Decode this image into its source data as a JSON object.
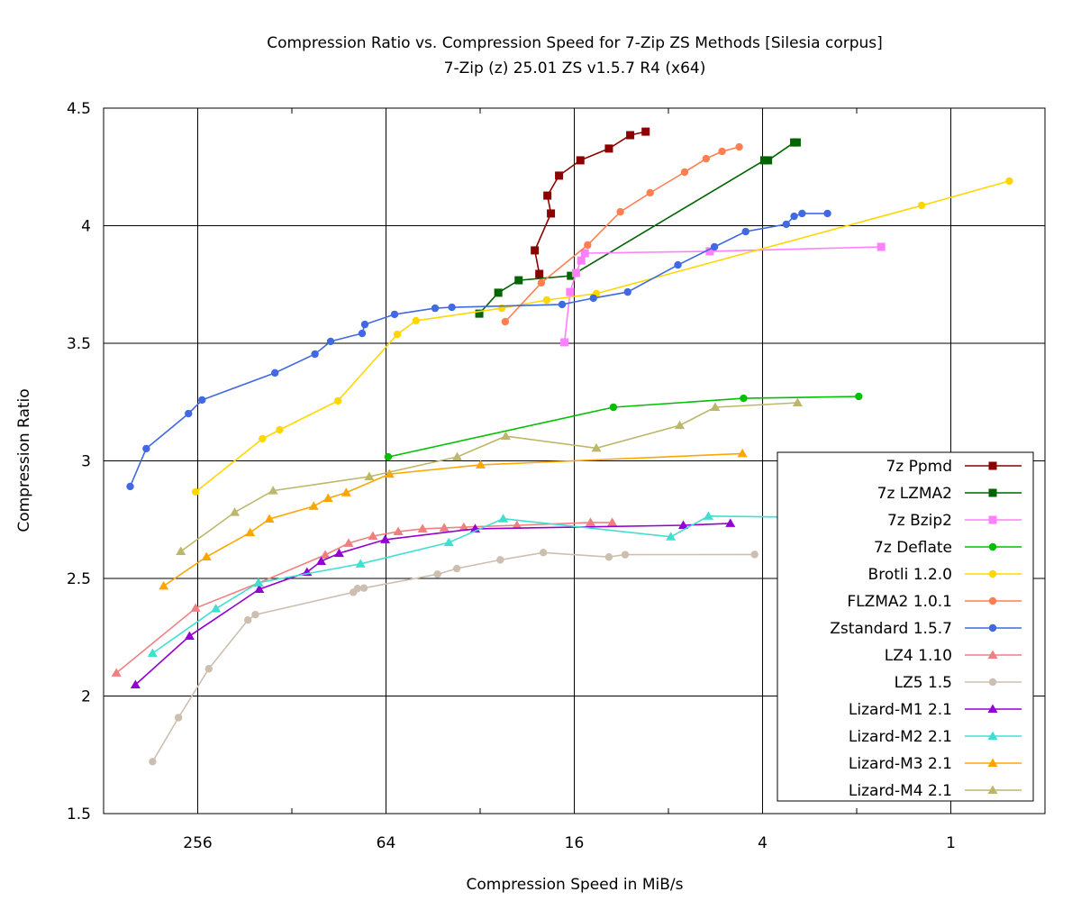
{
  "chart_data": {
    "type": "line",
    "title": "Compression Ratio vs. Compression Speed for 7-Zip ZS Methods [Silesia corpus]",
    "subtitle": "7-Zip (z) 25.01 ZS v1.5.7 R4 (x64)",
    "xlabel": "Compression Speed in MiB/s",
    "ylabel": "Compression Ratio",
    "x_scale": "log2",
    "x_reversed": true,
    "xlim": [
      512,
      0.5
    ],
    "ylim": [
      1.5,
      4.5
    ],
    "x_ticks": [
      256,
      64,
      16,
      4,
      1
    ],
    "x_tick_labels": [
      "256",
      "64",
      "16",
      "4",
      "1"
    ],
    "x_minor_ticks": [
      128,
      32,
      8,
      2
    ],
    "y_ticks": [
      1.5,
      2,
      2.5,
      3,
      3.5,
      4,
      4.5
    ],
    "y_tick_labels": [
      "1.5",
      "2",
      "2.5",
      "3",
      "3.5",
      "4",
      "4.5"
    ],
    "grid": true,
    "legend_position": "bottom-right",
    "series": [
      {
        "name": "7z Ppmd",
        "color": "#8b0000",
        "marker": "square",
        "points": [
          [
            20.7,
            3.795
          ],
          [
            21.4,
            3.895
          ],
          [
            19.0,
            4.052
          ],
          [
            19.5,
            4.128
          ],
          [
            17.9,
            4.213
          ],
          [
            15.3,
            4.278
          ],
          [
            12.4,
            4.328
          ],
          [
            10.6,
            4.385
          ],
          [
            9.46,
            4.4
          ]
        ]
      },
      {
        "name": "7z LZMA2",
        "color": "#006400",
        "marker": "square",
        "points": [
          [
            32.2,
            3.626
          ],
          [
            28.0,
            3.715
          ],
          [
            24.1,
            3.768
          ],
          [
            16.4,
            3.787
          ],
          [
            3.95,
            4.278
          ],
          [
            3.84,
            4.278
          ],
          [
            3.17,
            4.354
          ],
          [
            3.11,
            4.354
          ]
        ]
      },
      {
        "name": "7z Bzip2",
        "color": "#ff80ff",
        "marker": "square",
        "points": [
          [
            17.2,
            3.504
          ],
          [
            16.5,
            3.718
          ],
          [
            15.8,
            3.799
          ],
          [
            15.2,
            3.852
          ],
          [
            14.8,
            3.883
          ],
          [
            5.9,
            3.891
          ],
          [
            1.67,
            3.91
          ]
        ]
      },
      {
        "name": "7z Deflate",
        "color": "#00c000",
        "marker": "circle",
        "points": [
          [
            63.0,
            3.017
          ],
          [
            12.0,
            3.228
          ],
          [
            4.6,
            3.266
          ],
          [
            1.97,
            3.274
          ]
        ]
      },
      {
        "name": "Brotli 1.2.0",
        "color": "#ffd700",
        "marker": "circle",
        "points": [
          [
            260,
            2.868
          ],
          [
            159,
            3.094
          ],
          [
            140,
            3.132
          ],
          [
            91.2,
            3.255
          ],
          [
            58.9,
            3.538
          ],
          [
            51.3,
            3.596
          ],
          [
            27.3,
            3.649
          ],
          [
            19.6,
            3.684
          ],
          [
            13.6,
            3.711
          ],
          [
            1.24,
            4.086
          ],
          [
            0.65,
            4.19
          ]
        ]
      },
      {
        "name": "FLZMA2 1.0.1",
        "color": "#ff7f50",
        "marker": "circle",
        "points": [
          [
            26.6,
            3.592
          ],
          [
            20.4,
            3.757
          ],
          [
            14.5,
            3.918
          ],
          [
            11.4,
            4.059
          ],
          [
            9.15,
            4.14
          ],
          [
            7.1,
            4.228
          ],
          [
            6.06,
            4.285
          ],
          [
            5.39,
            4.316
          ],
          [
            4.75,
            4.335
          ]
        ]
      },
      {
        "name": "Zstandard 1.5.7",
        "color": "#4169e1",
        "marker": "circle",
        "points": [
          [
            421,
            2.891
          ],
          [
            374,
            3.052
          ],
          [
            274,
            3.201
          ],
          [
            248,
            3.259
          ],
          [
            145,
            3.374
          ],
          [
            108,
            3.454
          ],
          [
            96.2,
            3.508
          ],
          [
            76.3,
            3.542
          ],
          [
            74.8,
            3.58
          ],
          [
            60.1,
            3.623
          ],
          [
            44.6,
            3.649
          ],
          [
            39.4,
            3.653
          ],
          [
            17.5,
            3.665
          ],
          [
            13.9,
            3.692
          ],
          [
            10.8,
            3.718
          ],
          [
            7.46,
            3.833
          ],
          [
            5.7,
            3.91
          ],
          [
            4.53,
            3.975
          ],
          [
            3.36,
            4.006
          ],
          [
            3.17,
            4.04
          ],
          [
            2.99,
            4.052
          ],
          [
            2.48,
            4.052
          ]
        ]
      },
      {
        "name": "LZ4 1.10",
        "color": "#f08080",
        "marker": "triangle",
        "points": [
          [
            466,
            2.098
          ],
          [
            260,
            2.374
          ],
          [
            163.5,
            2.481
          ],
          [
            100.1,
            2.6
          ],
          [
            84.3,
            2.65
          ],
          [
            70.5,
            2.68
          ],
          [
            58.5,
            2.699
          ],
          [
            48.9,
            2.711
          ],
          [
            41.7,
            2.715
          ],
          [
            36.1,
            2.718
          ],
          [
            24.4,
            2.726
          ],
          [
            14.2,
            2.738
          ],
          [
            12.1,
            2.738
          ]
        ]
      },
      {
        "name": "LZ5 1.5",
        "color": "#cdbfb0",
        "marker": "circle",
        "points": [
          [
            357,
            1.721
          ],
          [
            295,
            1.908
          ],
          [
            236,
            2.116
          ],
          [
            177,
            2.323
          ],
          [
            167.5,
            2.346
          ],
          [
            81.4,
            2.441
          ],
          [
            79.0,
            2.457
          ],
          [
            75.3,
            2.459
          ],
          [
            43.8,
            2.518
          ],
          [
            38.0,
            2.542
          ],
          [
            27.6,
            2.579
          ],
          [
            20.1,
            2.61
          ],
          [
            12.4,
            2.591
          ],
          [
            11.0,
            2.601
          ],
          [
            4.24,
            2.602
          ]
        ]
      },
      {
        "name": "Lizard-M1 2.1",
        "color": "#9400d3",
        "marker": "triangle",
        "points": [
          [
            405,
            2.048
          ],
          [
            272,
            2.255
          ],
          [
            162.7,
            2.454
          ],
          [
            114.5,
            2.527
          ],
          [
            103.2,
            2.573
          ],
          [
            90.4,
            2.607
          ],
          [
            64.4,
            2.665
          ],
          [
            33.2,
            2.711
          ],
          [
            7.17,
            2.726
          ],
          [
            5.07,
            2.734
          ]
        ]
      },
      {
        "name": "Lizard-M2 2.1",
        "color": "#40e0d0",
        "marker": "triangle",
        "points": [
          [
            357,
            2.182
          ],
          [
            224,
            2.371
          ],
          [
            163.8,
            2.482
          ],
          [
            77.2,
            2.562
          ],
          [
            40.3,
            2.653
          ],
          [
            27.0,
            2.754
          ],
          [
            7.86,
            2.677
          ],
          [
            5.96,
            2.765
          ],
          [
            3.22,
            2.761
          ]
        ]
      },
      {
        "name": "Lizard-M3 2.1",
        "color": "#ffa500",
        "marker": "triangle",
        "points": [
          [
            329,
            2.468
          ],
          [
            240,
            2.592
          ],
          [
            174,
            2.695
          ],
          [
            151,
            2.753
          ],
          [
            109,
            2.807
          ],
          [
            98,
            2.841
          ],
          [
            85.8,
            2.865
          ],
          [
            62.4,
            2.944
          ],
          [
            31.9,
            2.983
          ],
          [
            4.64,
            3.031
          ]
        ]
      },
      {
        "name": "Lizard-M4 2.1",
        "color": "#bdb76b",
        "marker": "triangle",
        "points": [
          [
            290,
            2.615
          ],
          [
            195,
            2.781
          ],
          [
            147,
            2.873
          ],
          [
            72.4,
            2.933
          ],
          [
            37.9,
            3.017
          ],
          [
            26.5,
            3.105
          ],
          [
            13.6,
            3.054
          ],
          [
            7.36,
            3.151
          ],
          [
            5.67,
            3.228
          ],
          [
            3.09,
            3.247
          ]
        ]
      }
    ]
  }
}
